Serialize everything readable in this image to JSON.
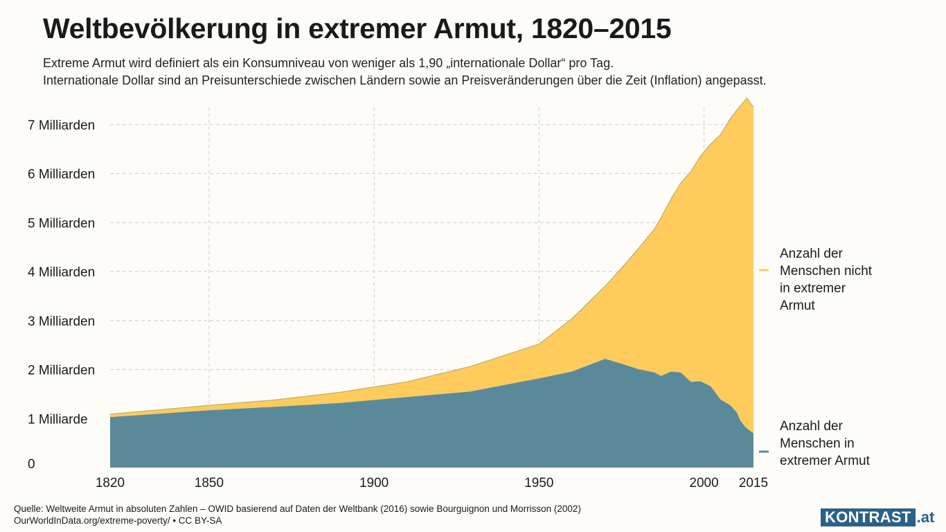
{
  "header": {
    "title": "Weltbevölkerung in extremer Armut, 1820–2015",
    "subtitle_line1": "Extreme Armut wird definiert als ein Konsumniveau von weniger als 1,90 „internationale Dollar“ pro Tag.",
    "subtitle_line2": "Internationale Dollar sind an Preisunterschiede zwischen Ländern sowie an Preisveränderungen über die Zeit (Inflation) angepasst."
  },
  "colors": {
    "not_poor": "#ffcb5c",
    "not_poor_line": "#b7b06a",
    "poor": "#5a8a9a",
    "grid": "#d4d4d4"
  },
  "chart_data": {
    "type": "area",
    "stacked": true,
    "xlim": [
      1820,
      2015
    ],
    "ylim": [
      0,
      7350000000
    ],
    "x_ticks": [
      1820,
      1850,
      1900,
      1950,
      2000,
      2015
    ],
    "x_tick_labels": [
      "1820",
      "1850",
      "1900",
      "1950",
      "2000",
      "2015"
    ],
    "y_ticks": [
      0,
      1000000000,
      2000000000,
      3000000000,
      4000000000,
      5000000000,
      6000000000,
      7000000000
    ],
    "y_tick_labels": [
      "0",
      "1 Milliarde",
      "2 Milliarden",
      "3 Milliarden",
      "4 Milliarden",
      "5 Milliarden",
      "6 Milliarden",
      "7 Milliarden"
    ],
    "grid": true,
    "legend_position": "right",
    "x": [
      1820,
      1850,
      1870,
      1890,
      1910,
      1929,
      1950,
      1960,
      1970,
      1975,
      1980,
      1985,
      1987,
      1990,
      1993,
      1996,
      1999,
      2002,
      2005,
      2008,
      2010,
      2011,
      2012,
      2013,
      2015
    ],
    "series": [
      {
        "name": "Anzahl der Menschen in extremer Armut",
        "values": [
          1030000000,
          1170000000,
          1240000000,
          1320000000,
          1440000000,
          1550000000,
          1820000000,
          1960000000,
          2220000000,
          2120000000,
          2010000000,
          1940000000,
          1870000000,
          1960000000,
          1940000000,
          1750000000,
          1760000000,
          1660000000,
          1390000000,
          1270000000,
          1120000000,
          960000000,
          870000000,
          800000000,
          700000000
        ]
      },
      {
        "name": "Anzahl der Menschen nicht in extremer Armut",
        "values": [
          60000000,
          100000000,
          140000000,
          220000000,
          310000000,
          510000000,
          700000000,
          1080000000,
          1480000000,
          1950000000,
          2450000000,
          2930000000,
          3230000000,
          3520000000,
          3870000000,
          4290000000,
          4600000000,
          4940000000,
          5400000000,
          5850000000,
          6180000000,
          6420000000,
          6590000000,
          6740000000,
          6650000000
        ]
      }
    ],
    "legend": {
      "not_poor_lines": [
        "Anzahl der",
        "Menschen nicht",
        "in extremer",
        "Armut"
      ],
      "poor_lines": [
        "Anzahl der",
        "Menschen in",
        "extremer Armut"
      ]
    }
  },
  "footer": {
    "source_line1": "Quelle: Weltweite Armut in absoluten Zahlen – OWID basierend auf Daten der Weltbank (2016) sowie Bourguignon und Morrisson (2002)",
    "source_line2": "OurWorldInData.org/extreme-poverty/ • CC BY-SA",
    "logo_main": "KONTRAST",
    "logo_suffix": ".at"
  }
}
